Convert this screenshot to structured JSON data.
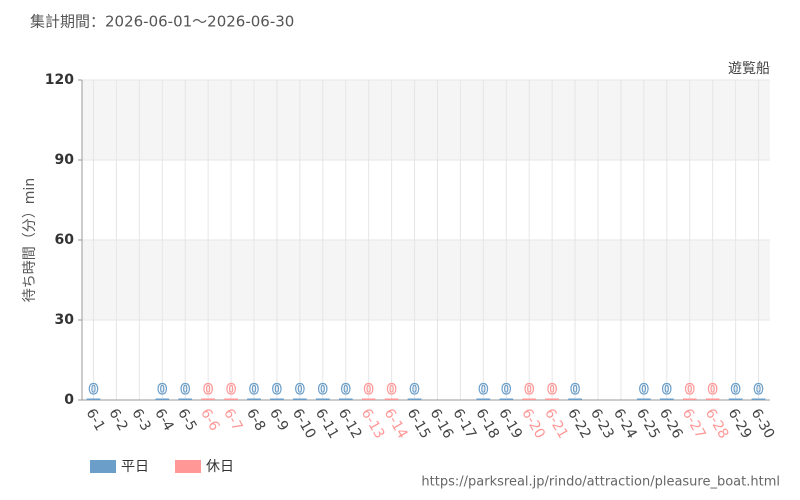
{
  "chart_data": {
    "type": "bar",
    "title": "集計期間：2026-06-01～2026-06-30",
    "subtitle": "遊覧船",
    "y_label": "待ち時間（分）min",
    "source": "https://parksreal.jp/rindo/attraction/pleasure_boat.html",
    "categories": [
      "6-1",
      "6-2",
      "6-3",
      "6-4",
      "6-5",
      "6-6",
      "6-7",
      "6-8",
      "6-9",
      "6-10",
      "6-11",
      "6-12",
      "6-13",
      "6-14",
      "6-15",
      "6-16",
      "6-17",
      "6-18",
      "6-19",
      "6-20",
      "6-21",
      "6-22",
      "6-23",
      "6-24",
      "6-25",
      "6-26",
      "6-27",
      "6-28",
      "6-29",
      "6-30"
    ],
    "series": [
      {
        "name": "平日",
        "color": "#6b9ec8",
        "values": [
          0,
          null,
          null,
          0,
          0,
          null,
          null,
          0,
          0,
          0,
          0,
          0,
          null,
          null,
          0,
          null,
          null,
          0,
          0,
          null,
          null,
          0,
          null,
          null,
          0,
          0,
          null,
          null,
          0,
          0
        ]
      },
      {
        "name": "休日",
        "color": "#ff9797",
        "values": [
          null,
          null,
          null,
          null,
          null,
          0,
          0,
          null,
          null,
          null,
          null,
          null,
          0,
          0,
          null,
          null,
          null,
          null,
          null,
          0,
          0,
          null,
          null,
          null,
          null,
          null,
          0,
          0,
          null,
          null
        ]
      }
    ],
    "ylim": [
      0,
      120
    ],
    "yticks": [
      0,
      30,
      60,
      90,
      120
    ],
    "grid": true
  }
}
